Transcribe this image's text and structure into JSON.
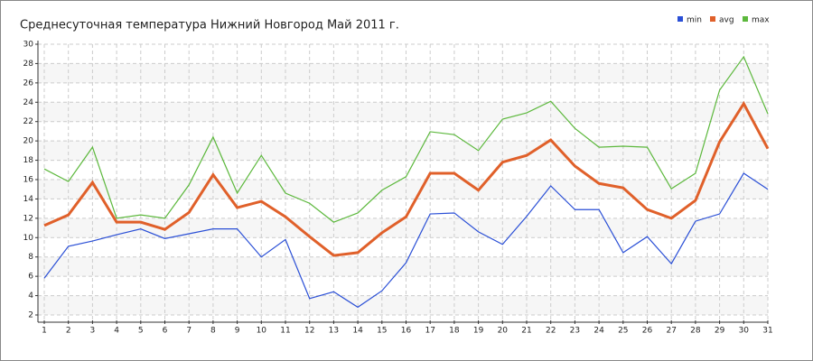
{
  "chart_data": {
    "type": "line",
    "title": "Среднесуточная температура Нижний Новгород  Май 2011 г.",
    "x": [
      1,
      2,
      3,
      4,
      5,
      6,
      7,
      8,
      9,
      10,
      11,
      12,
      13,
      14,
      15,
      16,
      17,
      18,
      19,
      20,
      21,
      22,
      23,
      24,
      25,
      26,
      27,
      28,
      29,
      30,
      31
    ],
    "series": [
      {
        "name": "min",
        "color": "#2a4fd6",
        "values": [
          5.8,
          9.1,
          9.65,
          10.3,
          10.9,
          9.9,
          10.4,
          10.9,
          10.9,
          8.0,
          9.8,
          3.7,
          4.4,
          2.8,
          4.5,
          7.4,
          12.45,
          12.55,
          10.6,
          9.3,
          12.2,
          15.35,
          12.9,
          12.9,
          8.45,
          10.1,
          7.3,
          11.7,
          12.45,
          16.65,
          15.0
        ]
      },
      {
        "name": "avg",
        "color": "#e0602a",
        "values": [
          11.25,
          12.35,
          15.7,
          11.6,
          11.6,
          10.85,
          12.6,
          16.5,
          13.1,
          13.75,
          12.15,
          10.1,
          8.15,
          8.45,
          10.5,
          12.15,
          16.65,
          16.65,
          14.9,
          17.8,
          18.5,
          20.1,
          17.4,
          15.6,
          15.15,
          12.9,
          12.0,
          13.85,
          19.9,
          23.85,
          19.2
        ]
      },
      {
        "name": "max",
        "color": "#5cb83c",
        "values": [
          17.1,
          15.8,
          19.35,
          12.0,
          12.35,
          12.0,
          15.45,
          20.4,
          14.6,
          18.5,
          14.6,
          13.55,
          11.6,
          12.55,
          14.9,
          16.3,
          20.95,
          20.65,
          19.0,
          22.25,
          22.9,
          24.1,
          21.3,
          19.35,
          19.45,
          19.35,
          15.05,
          16.65,
          25.25,
          28.7,
          22.8
        ]
      }
    ],
    "xlim": [
      1,
      31
    ],
    "xticks": [
      1,
      2,
      3,
      4,
      5,
      6,
      7,
      8,
      9,
      10,
      11,
      12,
      13,
      14,
      15,
      16,
      17,
      18,
      19,
      20,
      21,
      22,
      23,
      24,
      25,
      26,
      27,
      28,
      29,
      30,
      31
    ],
    "ylim": [
      2,
      30
    ],
    "yticks": [
      2,
      4,
      6,
      8,
      10,
      12,
      14,
      16,
      18,
      20,
      22,
      24,
      26,
      28,
      30
    ],
    "grid": true,
    "legend": "top-right"
  }
}
